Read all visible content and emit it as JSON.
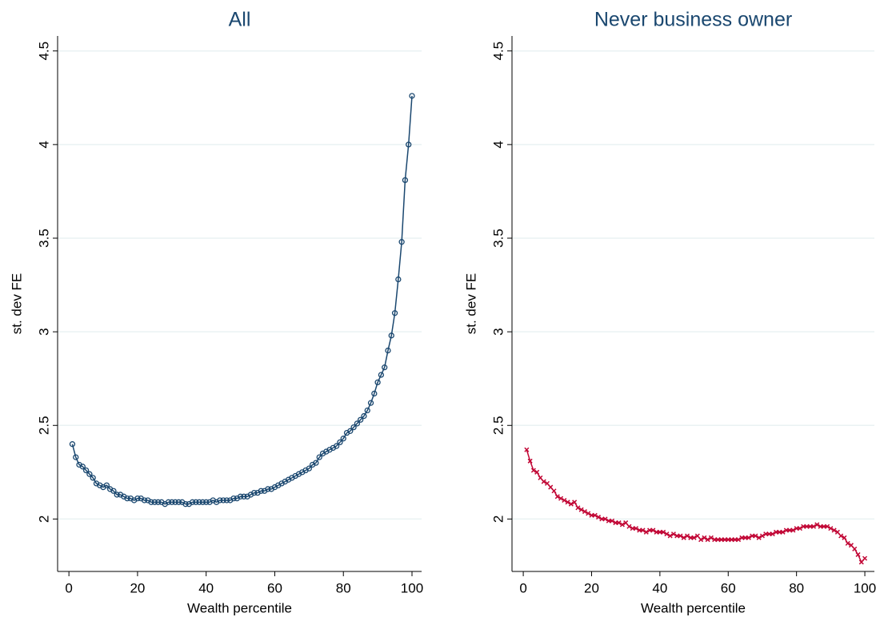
{
  "chart_data": [
    {
      "type": "line",
      "title": "All",
      "xlabel": "Wealth percentile",
      "ylabel": "st. dev FE",
      "xlim": [
        -3.3,
        102.8
      ],
      "ylim": [
        1.72,
        4.58
      ],
      "xticks": [
        0,
        20,
        40,
        60,
        80,
        100
      ],
      "yticks": [
        2,
        2.5,
        3,
        3.5,
        4,
        4.5
      ],
      "grid": true,
      "x": [
        1,
        2,
        3,
        4,
        5,
        6,
        7,
        8,
        9,
        10,
        11,
        12,
        13,
        14,
        15,
        16,
        17,
        18,
        19,
        20,
        21,
        22,
        23,
        24,
        25,
        26,
        27,
        28,
        29,
        30,
        31,
        32,
        33,
        34,
        35,
        36,
        37,
        38,
        39,
        40,
        41,
        42,
        43,
        44,
        45,
        46,
        47,
        48,
        49,
        50,
        51,
        52,
        53,
        54,
        55,
        56,
        57,
        58,
        59,
        60,
        61,
        62,
        63,
        64,
        65,
        66,
        67,
        68,
        69,
        70,
        71,
        72,
        73,
        74,
        75,
        76,
        77,
        78,
        79,
        80,
        81,
        82,
        83,
        84,
        85,
        86,
        87,
        88,
        89,
        90,
        91,
        92,
        93,
        94,
        95,
        96,
        97,
        98,
        99,
        100
      ],
      "series": [
        {
          "color": "#1a476f",
          "marker": "circle",
          "values": [
            2.4,
            2.33,
            2.29,
            2.28,
            2.26,
            2.24,
            2.22,
            2.19,
            2.18,
            2.17,
            2.18,
            2.16,
            2.15,
            2.13,
            2.13,
            2.12,
            2.11,
            2.11,
            2.1,
            2.11,
            2.11,
            2.1,
            2.1,
            2.09,
            2.09,
            2.09,
            2.09,
            2.08,
            2.09,
            2.09,
            2.09,
            2.09,
            2.09,
            2.08,
            2.08,
            2.09,
            2.09,
            2.09,
            2.09,
            2.09,
            2.09,
            2.1,
            2.09,
            2.1,
            2.1,
            2.1,
            2.1,
            2.11,
            2.11,
            2.12,
            2.12,
            2.12,
            2.13,
            2.14,
            2.14,
            2.15,
            2.15,
            2.16,
            2.16,
            2.17,
            2.18,
            2.19,
            2.2,
            2.21,
            2.22,
            2.23,
            2.24,
            2.25,
            2.26,
            2.27,
            2.29,
            2.3,
            2.33,
            2.35,
            2.36,
            2.37,
            2.38,
            2.39,
            2.41,
            2.43,
            2.46,
            2.47,
            2.49,
            2.51,
            2.53,
            2.55,
            2.58,
            2.62,
            2.67,
            2.73,
            2.77,
            2.81,
            2.9,
            2.98,
            3.1,
            3.28,
            3.48,
            3.81,
            4.0,
            4.26
          ]
        }
      ]
    },
    {
      "type": "line",
      "title": "Never business owner",
      "xlabel": "Wealth percentile",
      "ylabel": "st. dev FE",
      "xlim": [
        -3.3,
        102.8
      ],
      "ylim": [
        1.72,
        4.58
      ],
      "xticks": [
        0,
        20,
        40,
        60,
        80,
        100
      ],
      "yticks": [
        2,
        2.5,
        3,
        3.5,
        4,
        4.5
      ],
      "grid": true,
      "x": [
        1,
        2,
        3,
        4,
        5,
        6,
        7,
        8,
        9,
        10,
        11,
        12,
        13,
        14,
        15,
        16,
        17,
        18,
        19,
        20,
        21,
        22,
        23,
        24,
        25,
        26,
        27,
        28,
        29,
        30,
        31,
        32,
        33,
        34,
        35,
        36,
        37,
        38,
        39,
        40,
        41,
        42,
        43,
        44,
        45,
        46,
        47,
        48,
        49,
        50,
        51,
        52,
        53,
        54,
        55,
        56,
        57,
        58,
        59,
        60,
        61,
        62,
        63,
        64,
        65,
        66,
        67,
        68,
        69,
        70,
        71,
        72,
        73,
        74,
        75,
        76,
        77,
        78,
        79,
        80,
        81,
        82,
        83,
        84,
        85,
        86,
        87,
        88,
        89,
        90,
        91,
        92,
        93,
        94,
        95,
        96,
        97,
        98,
        99,
        100
      ],
      "series": [
        {
          "color": "#c10534",
          "marker": "x",
          "values": [
            2.37,
            2.31,
            2.26,
            2.25,
            2.22,
            2.2,
            2.19,
            2.17,
            2.15,
            2.12,
            2.11,
            2.1,
            2.09,
            2.08,
            2.09,
            2.06,
            2.05,
            2.04,
            2.03,
            2.02,
            2.02,
            2.01,
            2.0,
            2.0,
            1.99,
            1.99,
            1.98,
            1.98,
            1.97,
            1.98,
            1.96,
            1.95,
            1.95,
            1.94,
            1.94,
            1.93,
            1.94,
            1.94,
            1.93,
            1.93,
            1.93,
            1.92,
            1.91,
            1.92,
            1.91,
            1.91,
            1.9,
            1.91,
            1.9,
            1.9,
            1.91,
            1.89,
            1.9,
            1.89,
            1.9,
            1.89,
            1.89,
            1.89,
            1.89,
            1.89,
            1.89,
            1.89,
            1.89,
            1.9,
            1.9,
            1.9,
            1.91,
            1.91,
            1.9,
            1.91,
            1.92,
            1.92,
            1.92,
            1.93,
            1.93,
            1.93,
            1.94,
            1.94,
            1.94,
            1.95,
            1.95,
            1.96,
            1.96,
            1.96,
            1.96,
            1.97,
            1.96,
            1.96,
            1.96,
            1.95,
            1.94,
            1.93,
            1.91,
            1.9,
            1.87,
            1.86,
            1.84,
            1.81,
            1.77,
            1.79
          ]
        }
      ]
    }
  ]
}
